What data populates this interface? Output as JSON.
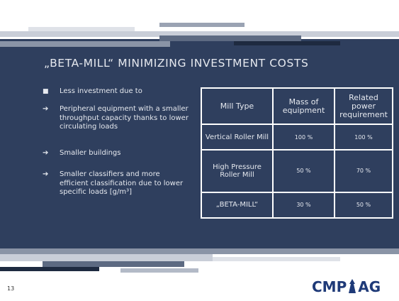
{
  "slide": {
    "title": "„BETA-MILL“ MINIMIZING INVESTMENT COSTS",
    "bullets": [
      "Less investment due to",
      "Peripheral equipment with a smaller throughput capacity thanks to lower circulating loads",
      "Smaller buildings",
      "Smaller classifiers and more efficient classification due to lower specific loads [g/m³]"
    ],
    "table": {
      "header": [
        "Mill Type",
        "Mass of equipment",
        "Related power requirement"
      ],
      "rows": [
        [
          "Vertical Roller Mill",
          "100 %",
          "100 %"
        ],
        [
          "High Pressure Roller Mill",
          "50 %",
          "70 %"
        ],
        [
          "„BETA-MILL“",
          "30 %",
          "50 %"
        ]
      ]
    },
    "page_number": "13",
    "logo": {
      "left": "CMP",
      "right": "AG"
    }
  }
}
